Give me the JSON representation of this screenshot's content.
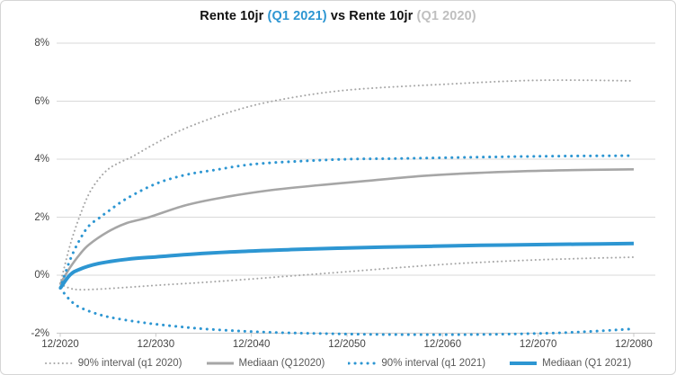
{
  "colors": {
    "blue": "#2d96d2",
    "gray": "#a6a6a6",
    "title_gray": "#bfbfbf",
    "gridline": "#d9d9d9",
    "axis_line": "#c8c8c8",
    "axis_text": "#444444",
    "legend_text": "#595959"
  },
  "title": {
    "part1": "Rente 10jr ",
    "part2": "(Q1 2021)",
    "part3": " vs Rente 10jr ",
    "part4": "(Q1 2020)"
  },
  "chart_data": {
    "type": "line",
    "title": "Rente 10jr (Q1 2021) vs Rente 10jr (Q1 2020)",
    "xlabel": "",
    "ylabel": "",
    "x_axis": {
      "tick_labels": [
        "12/2020",
        "12/2030",
        "12/2040",
        "12/2050",
        "12/2060",
        "12/2070",
        "12/2080"
      ],
      "tick_years_after_start": [
        0,
        10,
        20,
        30,
        40,
        50,
        60
      ]
    },
    "y_axis": {
      "tick_labels": [
        "8%",
        "6%",
        "4%",
        "2%",
        "0%",
        "-2%"
      ],
      "tick_values": [
        8,
        6,
        4,
        2,
        0,
        -2
      ],
      "ylim": [
        -2,
        8
      ],
      "unit": "%"
    },
    "grid": "horizontal-only",
    "legend_position": "bottom",
    "series": [
      {
        "name": "90% interval (q1 2020) upper",
        "legend_label": "90% interval (q1 2020)",
        "style": "dotted",
        "color": "#a6a6a6",
        "width": 2,
        "points": [
          [
            0,
            -0.3
          ],
          [
            1,
            1.0
          ],
          [
            2,
            2.0
          ],
          [
            3,
            2.8
          ],
          [
            4,
            3.3
          ],
          [
            5,
            3.65
          ],
          [
            6,
            3.85
          ],
          [
            7.6,
            4.1
          ],
          [
            10,
            4.55
          ],
          [
            13,
            5.05
          ],
          [
            18,
            5.65
          ],
          [
            23,
            6.05
          ],
          [
            30,
            6.38
          ],
          [
            40,
            6.58
          ],
          [
            50,
            6.72
          ],
          [
            60,
            6.7
          ]
        ]
      },
      {
        "name": "90% interval (q1 2020) lower",
        "legend_label": null,
        "style": "dotted",
        "color": "#a6a6a6",
        "width": 2,
        "points": [
          [
            0,
            -0.3
          ],
          [
            1,
            -0.45
          ],
          [
            2,
            -0.5
          ],
          [
            4,
            -0.48
          ],
          [
            7,
            -0.42
          ],
          [
            10,
            -0.35
          ],
          [
            14,
            -0.27
          ],
          [
            18,
            -0.18
          ],
          [
            22,
            -0.08
          ],
          [
            26,
            0.02
          ],
          [
            30,
            0.12
          ],
          [
            35,
            0.25
          ],
          [
            40,
            0.37
          ],
          [
            45,
            0.46
          ],
          [
            50,
            0.53
          ],
          [
            55,
            0.58
          ],
          [
            60,
            0.62
          ]
        ]
      },
      {
        "name": "Mediaan (Q12020)",
        "legend_label": "Mediaan (Q12020)",
        "style": "solid",
        "color": "#a6a6a6",
        "width": 2.6,
        "points": [
          [
            0,
            -0.3
          ],
          [
            1,
            0.25
          ],
          [
            2,
            0.7
          ],
          [
            3,
            1.05
          ],
          [
            5,
            1.5
          ],
          [
            7,
            1.8
          ],
          [
            9.3,
            2.0
          ],
          [
            13,
            2.4
          ],
          [
            17,
            2.68
          ],
          [
            22,
            2.93
          ],
          [
            27,
            3.1
          ],
          [
            32,
            3.25
          ],
          [
            37,
            3.4
          ],
          [
            42,
            3.5
          ],
          [
            47,
            3.57
          ],
          [
            53,
            3.62
          ],
          [
            60,
            3.65
          ]
        ]
      },
      {
        "name": "90% interval (q1 2021) upper",
        "legend_label": "90% interval (q1 2021)",
        "style": "dotted",
        "color": "#2d96d2",
        "width": 3,
        "points": [
          [
            0,
            -0.45
          ],
          [
            1,
            0.5
          ],
          [
            2,
            1.2
          ],
          [
            3,
            1.7
          ],
          [
            4.2,
            2.0
          ],
          [
            5,
            2.2
          ],
          [
            7,
            2.65
          ],
          [
            10,
            3.15
          ],
          [
            13,
            3.45
          ],
          [
            16,
            3.62
          ],
          [
            20,
            3.82
          ],
          [
            25,
            3.93
          ],
          [
            30,
            4.0
          ],
          [
            35,
            4.02
          ],
          [
            40,
            4.05
          ],
          [
            50,
            4.1
          ],
          [
            60,
            4.12
          ]
        ]
      },
      {
        "name": "90% interval (q1 2021) lower",
        "legend_label": null,
        "style": "dotted",
        "color": "#2d96d2",
        "width": 3,
        "points": [
          [
            0,
            -0.45
          ],
          [
            1,
            -0.85
          ],
          [
            2,
            -1.1
          ],
          [
            4,
            -1.35
          ],
          [
            6,
            -1.5
          ],
          [
            9,
            -1.65
          ],
          [
            12,
            -1.76
          ],
          [
            15,
            -1.85
          ],
          [
            19,
            -1.93
          ],
          [
            23,
            -1.98
          ],
          [
            27,
            -2.01
          ],
          [
            32,
            -2.04
          ],
          [
            37,
            -2.05
          ],
          [
            42,
            -2.05
          ],
          [
            47,
            -2.03
          ],
          [
            52,
            -1.99
          ],
          [
            56,
            -1.93
          ],
          [
            60,
            -1.85
          ]
        ]
      },
      {
        "name": "Mediaan (Q1 2021)",
        "legend_label": "Mediaan (Q1 2021)",
        "style": "solid",
        "color": "#2d96d2",
        "width": 4,
        "points": [
          [
            0,
            -0.45
          ],
          [
            1,
            0.0
          ],
          [
            2,
            0.2
          ],
          [
            4,
            0.4
          ],
          [
            7,
            0.55
          ],
          [
            10,
            0.63
          ],
          [
            14,
            0.73
          ],
          [
            19,
            0.82
          ],
          [
            24,
            0.88
          ],
          [
            29,
            0.93
          ],
          [
            34,
            0.97
          ],
          [
            39,
            1.0
          ],
          [
            44,
            1.03
          ],
          [
            49,
            1.05
          ],
          [
            54,
            1.07
          ],
          [
            60,
            1.09
          ]
        ]
      }
    ]
  },
  "legend": {
    "items": [
      {
        "label": "90% interval (q1 2020)",
        "style": "dotted",
        "color": "#a6a6a6",
        "width": 2
      },
      {
        "label": "Mediaan (Q12020)",
        "style": "solid",
        "color": "#a6a6a6",
        "width": 3
      },
      {
        "label": "90% interval (q1 2021)",
        "style": "dotted",
        "color": "#2d96d2",
        "width": 3
      },
      {
        "label": "Mediaan (Q1 2021)",
        "style": "solid",
        "color": "#2d96d2",
        "width": 4
      }
    ]
  }
}
